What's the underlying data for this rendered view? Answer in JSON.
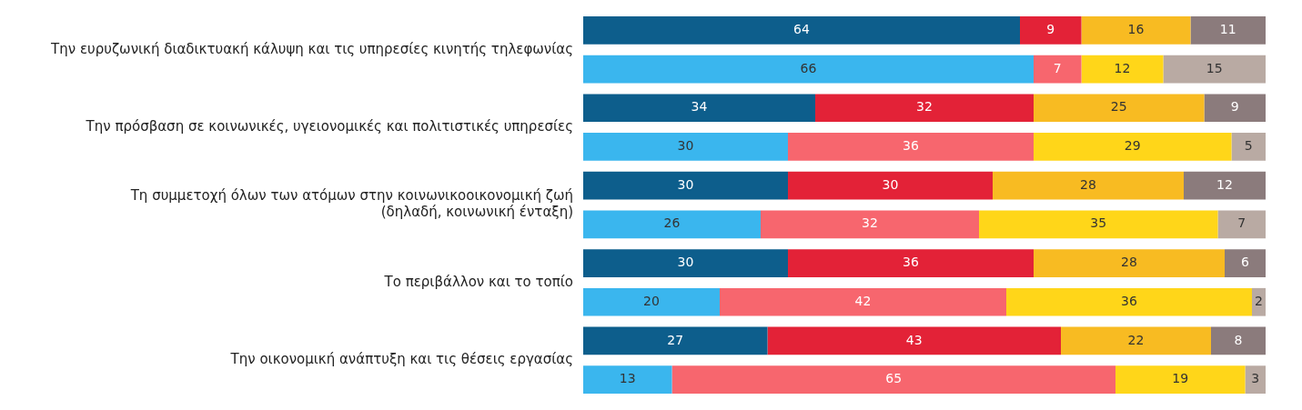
{
  "chart_data": {
    "type": "bar",
    "orientation": "horizontal",
    "stacked": true,
    "data_labels": true,
    "grid": false,
    "legend": false,
    "categories": [
      "Την ευρυζωνική διαδικτυακή κάλυψη και τις υπηρεσίες κινητής τηλεφωνίας",
      null,
      "Την πρόσβαση σε κοινωνικές, υγειονομικές και πολιτιστικές υπηρεσίες",
      null,
      "Τη συμμετοχή όλων των ατόμων στην κοινωνικοοικονομική ζωή\n(δηλαδή, κοινωνική ένταξη)",
      null,
      "Το περιβάλλον και το τοπίο",
      null,
      "Την οικονομική ανάπτυξη και τις θέσεις εργασίας",
      null
    ],
    "series": [
      {
        "values": [
          64,
          66,
          34,
          30,
          30,
          26,
          30,
          20,
          27,
          13
        ],
        "colors": [
          "#0d5e8c",
          "#3ab6ee",
          "#0d5e8c",
          "#3ab6ee",
          "#0d5e8c",
          "#3ab6ee",
          "#0d5e8c",
          "#3ab6ee",
          "#0d5e8c",
          "#3ab6ee"
        ]
      },
      {
        "values": [
          9,
          7,
          32,
          36,
          30,
          32,
          36,
          42,
          43,
          65
        ],
        "colors": [
          "#e32237",
          "#f7666e",
          "#e32237",
          "#f7666e",
          "#e32237",
          "#f7666e",
          "#e32237",
          "#f7666e",
          "#e32237",
          "#f7666e"
        ]
      },
      {
        "values": [
          16,
          12,
          25,
          29,
          28,
          35,
          28,
          36,
          22,
          19
        ],
        "colors": [
          "#f8bb22",
          "#ffd619",
          "#f8bb22",
          "#ffd619",
          "#f8bb22",
          "#ffd619",
          "#f8bb22",
          "#ffd619",
          "#f8bb22",
          "#ffd619"
        ]
      },
      {
        "values": [
          11,
          15,
          9,
          5,
          12,
          7,
          6,
          2,
          8,
          3
        ],
        "colors": [
          "#8b7b7c",
          "#b9aaa3",
          "#8b7b7c",
          "#b9aaa3",
          "#8b7b7c",
          "#b9aaa3",
          "#8b7b7c",
          "#b9aaa3",
          "#8b7b7c",
          "#b9aaa3"
        ]
      }
    ]
  }
}
